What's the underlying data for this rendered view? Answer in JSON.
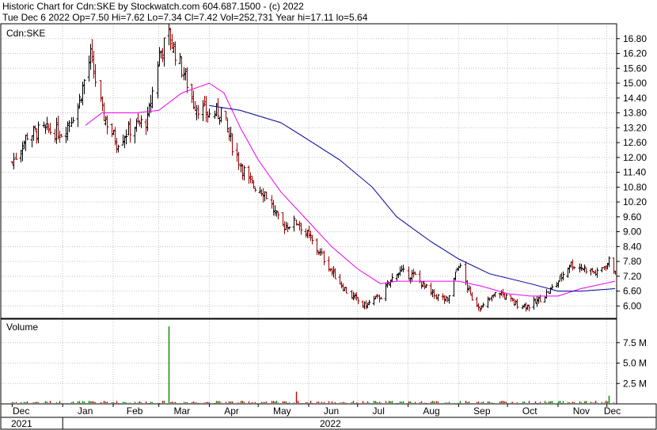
{
  "header": {
    "line1": "Historic Chart for Cdn:SKE by Stockwatch.com 604.687.1500 - (c) 2022",
    "line2": "Tue Dec  6 2022   Op=7.50  Hi=7.62  Lo=7.34  Cl=7.42  Vol=252,731  Year hi=17.11  lo=5.64"
  },
  "chart_data": [
    {
      "type": "ohlc",
      "symbol_label": "Cdn:SKE",
      "y_ticks": [
        "16.80",
        "16.20",
        "15.60",
        "15.00",
        "14.40",
        "13.80",
        "13.20",
        "12.60",
        "12.00",
        "11.40",
        "10.80",
        "10.20",
        "9.60",
        "9.00",
        "8.40",
        "7.80",
        "7.20",
        "6.60",
        "6.00"
      ],
      "ylim": [
        5.5,
        17.4
      ],
      "x_months": [
        "Dec",
        "Jan",
        "Feb",
        "Mar",
        "Apr",
        "May",
        "Jun",
        "Jul",
        "Aug",
        "Sep",
        "Oct",
        "Nov",
        "Dec"
      ],
      "x_years": [
        "2021",
        "2022"
      ],
      "colors": {
        "up": "#000000",
        "down": "#990000",
        "ma_short": "#ee00ee",
        "ma_long": "#000099",
        "grid": "#c0c0c0"
      },
      "close_anchors": [
        {
          "date": "2021-12-01",
          "close": 11.8
        },
        {
          "date": "2021-12-10",
          "close": 12.9
        },
        {
          "date": "2021-12-20",
          "close": 13.1
        },
        {
          "date": "2022-01-01",
          "close": 13.0
        },
        {
          "date": "2022-01-10",
          "close": 14.1
        },
        {
          "date": "2022-01-18",
          "close": 16.1
        },
        {
          "date": "2022-01-25",
          "close": 13.8
        },
        {
          "date": "2022-02-03",
          "close": 12.6
        },
        {
          "date": "2022-02-12",
          "close": 13.2
        },
        {
          "date": "2022-02-22",
          "close": 13.5
        },
        {
          "date": "2022-03-01",
          "close": 16.2
        },
        {
          "date": "2022-03-07",
          "close": 16.9
        },
        {
          "date": "2022-03-15",
          "close": 15.6
        },
        {
          "date": "2022-03-22",
          "close": 14.2
        },
        {
          "date": "2022-04-01",
          "close": 13.7
        },
        {
          "date": "2022-04-08",
          "close": 13.9
        },
        {
          "date": "2022-04-15",
          "close": 12.5
        },
        {
          "date": "2022-04-25",
          "close": 11.0
        },
        {
          "date": "2022-05-05",
          "close": 10.6
        },
        {
          "date": "2022-05-15",
          "close": 9.2
        },
        {
          "date": "2022-05-25",
          "close": 9.4
        },
        {
          "date": "2022-06-05",
          "close": 8.4
        },
        {
          "date": "2022-06-15",
          "close": 7.4
        },
        {
          "date": "2022-06-25",
          "close": 6.5
        },
        {
          "date": "2022-07-05",
          "close": 6.0
        },
        {
          "date": "2022-07-15",
          "close": 6.4
        },
        {
          "date": "2022-07-25",
          "close": 7.4
        },
        {
          "date": "2022-08-05",
          "close": 7.2
        },
        {
          "date": "2022-08-15",
          "close": 6.5
        },
        {
          "date": "2022-08-25",
          "close": 6.2
        },
        {
          "date": "2022-09-01",
          "close": 7.7
        },
        {
          "date": "2022-09-08",
          "close": 6.4
        },
        {
          "date": "2022-09-15",
          "close": 5.9
        },
        {
          "date": "2022-09-25",
          "close": 6.6
        },
        {
          "date": "2022-10-05",
          "close": 6.1
        },
        {
          "date": "2022-10-15",
          "close": 6.0
        },
        {
          "date": "2022-10-25",
          "close": 6.5
        },
        {
          "date": "2022-11-01",
          "close": 7.0
        },
        {
          "date": "2022-11-08",
          "close": 7.7
        },
        {
          "date": "2022-11-18",
          "close": 7.5
        },
        {
          "date": "2022-11-25",
          "close": 7.3
        },
        {
          "date": "2022-12-02",
          "close": 7.8
        },
        {
          "date": "2022-12-06",
          "close": 7.42
        }
      ],
      "ma_short": [
        {
          "date": "2022-01-15",
          "value": 13.3
        },
        {
          "date": "2022-01-25",
          "value": 13.8
        },
        {
          "date": "2022-02-15",
          "value": 13.8
        },
        {
          "date": "2022-03-01",
          "value": 13.9
        },
        {
          "date": "2022-03-15",
          "value": 14.6
        },
        {
          "date": "2022-04-01",
          "value": 15.0
        },
        {
          "date": "2022-04-10",
          "value": 14.6
        },
        {
          "date": "2022-04-20",
          "value": 13.2
        },
        {
          "date": "2022-05-01",
          "value": 11.9
        },
        {
          "date": "2022-05-15",
          "value": 10.6
        },
        {
          "date": "2022-06-01",
          "value": 9.4
        },
        {
          "date": "2022-06-15",
          "value": 8.4
        },
        {
          "date": "2022-07-01",
          "value": 7.5
        },
        {
          "date": "2022-07-15",
          "value": 6.9
        },
        {
          "date": "2022-07-25",
          "value": 7.0
        },
        {
          "date": "2022-08-15",
          "value": 7.0
        },
        {
          "date": "2022-09-01",
          "value": 7.0
        },
        {
          "date": "2022-09-15",
          "value": 6.8
        },
        {
          "date": "2022-10-01",
          "value": 6.5
        },
        {
          "date": "2022-10-15",
          "value": 6.4
        },
        {
          "date": "2022-11-01",
          "value": 6.4
        },
        {
          "date": "2022-11-15",
          "value": 6.7
        },
        {
          "date": "2022-12-06",
          "value": 7.0
        }
      ],
      "ma_long": [
        {
          "date": "2022-04-01",
          "value": 14.1
        },
        {
          "date": "2022-04-20",
          "value": 13.9
        },
        {
          "date": "2022-05-15",
          "value": 13.4
        },
        {
          "date": "2022-06-01",
          "value": 12.7
        },
        {
          "date": "2022-06-20",
          "value": 11.9
        },
        {
          "date": "2022-07-10",
          "value": 10.8
        },
        {
          "date": "2022-07-25",
          "value": 9.6
        },
        {
          "date": "2022-08-15",
          "value": 8.6
        },
        {
          "date": "2022-09-01",
          "value": 7.9
        },
        {
          "date": "2022-09-20",
          "value": 7.3
        },
        {
          "date": "2022-10-15",
          "value": 6.9
        },
        {
          "date": "2022-11-01",
          "value": 6.6
        },
        {
          "date": "2022-11-15",
          "value": 6.6
        },
        {
          "date": "2022-12-06",
          "value": 6.7
        }
      ]
    },
    {
      "type": "bar",
      "title": "Volume",
      "y_ticks": [
        "7.5 M",
        "5.0 M",
        "2.5 M"
      ],
      "ylim": [
        0,
        10000000
      ],
      "spike": {
        "date": "2022-03-07",
        "value": 9500000
      },
      "notable": [
        {
          "date": "2022-02-26",
          "value": 1100000
        },
        {
          "date": "2022-05-24",
          "value": 1500000
        },
        {
          "date": "2022-12-02",
          "value": 1000000
        }
      ],
      "typical_value": 200000
    }
  ]
}
